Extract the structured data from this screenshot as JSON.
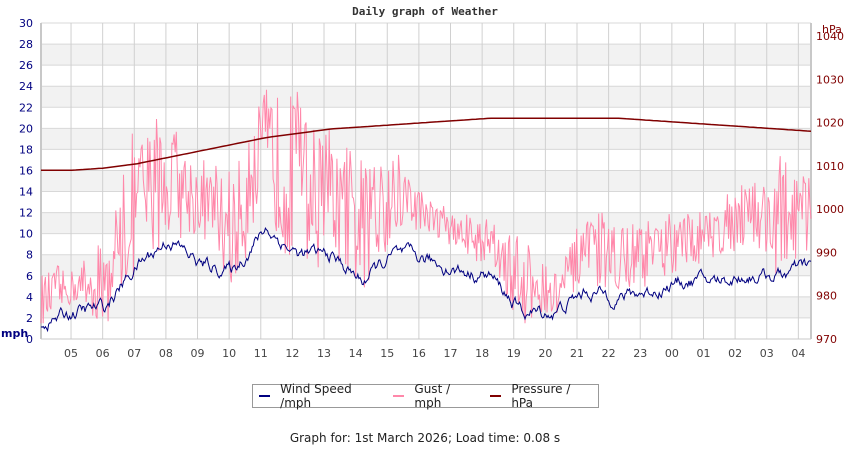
{
  "chart_data": {
    "type": "line",
    "title": "Daily graph of Weather",
    "xlabel": "",
    "ylabel": "mph",
    "ylabel_right": "hPa",
    "x_ticks": [
      "05",
      "06",
      "07",
      "08",
      "09",
      "10",
      "11",
      "12",
      "13",
      "14",
      "15",
      "16",
      "17",
      "18",
      "19",
      "20",
      "21",
      "22",
      "23",
      "00",
      "01",
      "02",
      "03",
      "04"
    ],
    "y_ticks_left": [
      0,
      2,
      4,
      6,
      8,
      10,
      12,
      14,
      16,
      18,
      20,
      22,
      24,
      26,
      28,
      30
    ],
    "y_ticks_right": [
      970,
      980,
      990,
      1000,
      1010,
      1020,
      1030,
      1040
    ],
    "ylim": [
      0,
      30
    ],
    "ylim_right": [
      970,
      1043
    ],
    "grid": true,
    "legend_position": "bottom",
    "series": [
      {
        "name": "Wind Speed /mph",
        "color": "#000080",
        "axis": "left",
        "hours": [
          "04",
          "05",
          "06",
          "07",
          "08",
          "09",
          "10",
          "11",
          "12",
          "13",
          "14",
          "15",
          "16",
          "17",
          "18",
          "19",
          "20",
          "21",
          "22",
          "23",
          "00",
          "01",
          "02",
          "03",
          "04"
        ],
        "values": [
          1.5,
          2.5,
          3,
          7,
          9.5,
          7,
          6.5,
          10.5,
          8,
          8,
          5.5,
          8,
          7.5,
          6.5,
          6,
          2.5,
          2.5,
          4.5,
          4,
          4.5,
          5.5,
          5.5,
          6,
          6,
          7
        ]
      },
      {
        "name": "Gust / mph",
        "color": "#ff88aa",
        "axis": "left",
        "hours": [
          "04",
          "05",
          "06",
          "07",
          "08",
          "09",
          "10",
          "11",
          "12",
          "13",
          "14",
          "15",
          "16",
          "17",
          "18",
          "19",
          "20",
          "21",
          "22",
          "23",
          "00",
          "01",
          "02",
          "03",
          "04"
        ],
        "values": [
          3.5,
          5,
          5,
          13,
          15,
          13,
          10,
          18,
          14,
          13,
          10,
          14,
          12,
          10,
          9,
          5,
          4,
          8,
          8,
          8,
          9,
          10,
          12,
          11,
          12
        ],
        "peaks": [
          7,
          7,
          10,
          21.5,
          22,
          17,
          17,
          25.5,
          24.5,
          20,
          17,
          19.5,
          14,
          12,
          12,
          10,
          7,
          12,
          12,
          12,
          12,
          13,
          16,
          17.5,
          16
        ]
      },
      {
        "name": "Pressure / hPa",
        "color": "#800000",
        "axis": "right",
        "hours": [
          "04",
          "05",
          "06",
          "07",
          "08",
          "09",
          "10",
          "11",
          "12",
          "13",
          "14",
          "15",
          "16",
          "17",
          "18",
          "19",
          "20",
          "21",
          "22",
          "23",
          "00",
          "01",
          "02",
          "03",
          "04"
        ],
        "values": [
          1009,
          1009,
          1009.5,
          1010.5,
          1012,
          1013.5,
          1015,
          1016.5,
          1017.5,
          1018.5,
          1019,
          1019.5,
          1020,
          1020.5,
          1021,
          1021,
          1021,
          1021,
          1021,
          1020.5,
          1020,
          1019.5,
          1019,
          1018.5,
          1018
        ]
      }
    ]
  },
  "chart": {
    "title": "Daily graph of Weather",
    "left_axis_unit": "mph",
    "right_axis_unit": "hPa"
  },
  "legend": {
    "items": [
      {
        "label": "Wind Speed /mph",
        "color": "#000080"
      },
      {
        "label": "Gust / mph",
        "color": "#ff88aa"
      },
      {
        "label": "Pressure / hPa",
        "color": "#800000"
      }
    ]
  },
  "footer": {
    "text": "Graph for: 1st March 2026; Load time: 0.08 s"
  }
}
